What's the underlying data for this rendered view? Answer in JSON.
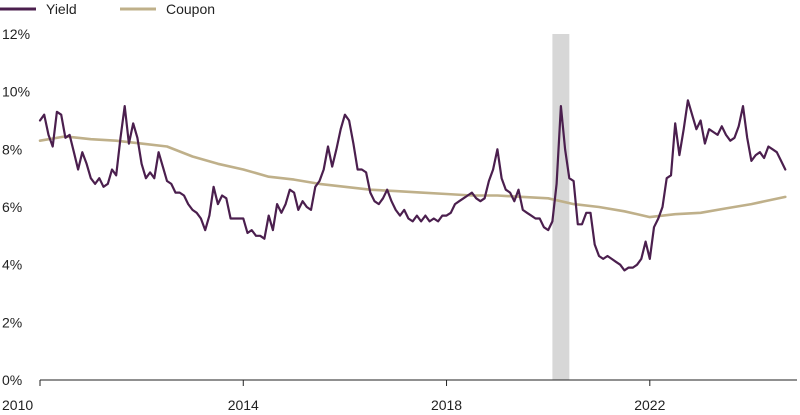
{
  "chart_data": {
    "type": "line",
    "title": "",
    "xlabel": "",
    "ylabel": "",
    "xlim": [
      "2010-01",
      "2024-09"
    ],
    "ylim": [
      0,
      12
    ],
    "x_ticks": [
      "2010",
      "2014",
      "2018",
      "2022"
    ],
    "y_ticks": [
      "0%",
      "2%",
      "4%",
      "6%",
      "8%",
      "10%",
      "12%"
    ],
    "grid": false,
    "legend": {
      "position": "top-left",
      "entries": [
        {
          "label": "Yield",
          "color": "#4b1f4e"
        },
        {
          "label": "Coupon",
          "color": "#bfb08a"
        }
      ]
    },
    "shaded_region": {
      "start": "2020-02",
      "end": "2020-06",
      "color": "#d7d7d7"
    },
    "series": [
      {
        "name": "Yield",
        "color": "#4b1f4e",
        "points": [
          [
            "2010-01",
            9.0
          ],
          [
            "2010-02",
            9.2
          ],
          [
            "2010-03",
            8.5
          ],
          [
            "2010-04",
            8.1
          ],
          [
            "2010-05",
            9.3
          ],
          [
            "2010-06",
            9.2
          ],
          [
            "2010-07",
            8.4
          ],
          [
            "2010-08",
            8.5
          ],
          [
            "2010-09",
            7.9
          ],
          [
            "2010-10",
            7.3
          ],
          [
            "2010-11",
            7.9
          ],
          [
            "2010-12",
            7.5
          ],
          [
            "2011-01",
            7.0
          ],
          [
            "2011-02",
            6.8
          ],
          [
            "2011-03",
            7.0
          ],
          [
            "2011-04",
            6.7
          ],
          [
            "2011-05",
            6.8
          ],
          [
            "2011-06",
            7.3
          ],
          [
            "2011-07",
            7.1
          ],
          [
            "2011-08",
            8.4
          ],
          [
            "2011-09",
            9.5
          ],
          [
            "2011-10",
            8.2
          ],
          [
            "2011-11",
            8.9
          ],
          [
            "2011-12",
            8.4
          ],
          [
            "2012-01",
            7.5
          ],
          [
            "2012-02",
            7.0
          ],
          [
            "2012-03",
            7.2
          ],
          [
            "2012-04",
            7.0
          ],
          [
            "2012-05",
            7.9
          ],
          [
            "2012-06",
            7.4
          ],
          [
            "2012-07",
            6.9
          ],
          [
            "2012-08",
            6.8
          ],
          [
            "2012-09",
            6.5
          ],
          [
            "2012-10",
            6.5
          ],
          [
            "2012-11",
            6.4
          ],
          [
            "2012-12",
            6.1
          ],
          [
            "2013-01",
            5.9
          ],
          [
            "2013-02",
            5.8
          ],
          [
            "2013-03",
            5.6
          ],
          [
            "2013-04",
            5.2
          ],
          [
            "2013-05",
            5.7
          ],
          [
            "2013-06",
            6.7
          ],
          [
            "2013-07",
            6.1
          ],
          [
            "2013-08",
            6.4
          ],
          [
            "2013-09",
            6.3
          ],
          [
            "2013-10",
            5.6
          ],
          [
            "2013-11",
            5.6
          ],
          [
            "2013-12",
            5.6
          ],
          [
            "2014-01",
            5.6
          ],
          [
            "2014-02",
            5.1
          ],
          [
            "2014-03",
            5.2
          ],
          [
            "2014-04",
            5.0
          ],
          [
            "2014-05",
            5.0
          ],
          [
            "2014-06",
            4.9
          ],
          [
            "2014-07",
            5.7
          ],
          [
            "2014-08",
            5.2
          ],
          [
            "2014-09",
            6.1
          ],
          [
            "2014-10",
            5.8
          ],
          [
            "2014-11",
            6.1
          ],
          [
            "2014-12",
            6.6
          ],
          [
            "2015-01",
            6.5
          ],
          [
            "2015-02",
            5.9
          ],
          [
            "2015-03",
            6.2
          ],
          [
            "2015-04",
            6.0
          ],
          [
            "2015-05",
            5.9
          ],
          [
            "2015-06",
            6.7
          ],
          [
            "2015-07",
            6.9
          ],
          [
            "2015-08",
            7.3
          ],
          [
            "2015-09",
            8.1
          ],
          [
            "2015-10",
            7.4
          ],
          [
            "2015-11",
            8.0
          ],
          [
            "2015-12",
            8.7
          ],
          [
            "2016-01",
            9.2
          ],
          [
            "2016-02",
            9.0
          ],
          [
            "2016-03",
            8.2
          ],
          [
            "2016-04",
            7.3
          ],
          [
            "2016-05",
            7.3
          ],
          [
            "2016-06",
            7.2
          ],
          [
            "2016-07",
            6.5
          ],
          [
            "2016-08",
            6.2
          ],
          [
            "2016-09",
            6.1
          ],
          [
            "2016-10",
            6.3
          ],
          [
            "2016-11",
            6.6
          ],
          [
            "2016-12",
            6.2
          ],
          [
            "2017-01",
            5.9
          ],
          [
            "2017-02",
            5.7
          ],
          [
            "2017-03",
            5.9
          ],
          [
            "2017-04",
            5.6
          ],
          [
            "2017-05",
            5.5
          ],
          [
            "2017-06",
            5.7
          ],
          [
            "2017-07",
            5.5
          ],
          [
            "2017-08",
            5.7
          ],
          [
            "2017-09",
            5.5
          ],
          [
            "2017-10",
            5.6
          ],
          [
            "2017-11",
            5.5
          ],
          [
            "2017-12",
            5.7
          ],
          [
            "2018-01",
            5.7
          ],
          [
            "2018-02",
            5.8
          ],
          [
            "2018-03",
            6.1
          ],
          [
            "2018-04",
            6.2
          ],
          [
            "2018-05",
            6.3
          ],
          [
            "2018-06",
            6.4
          ],
          [
            "2018-07",
            6.5
          ],
          [
            "2018-08",
            6.3
          ],
          [
            "2018-09",
            6.2
          ],
          [
            "2018-10",
            6.3
          ],
          [
            "2018-11",
            6.9
          ],
          [
            "2018-12",
            7.3
          ],
          [
            "2019-01",
            8.0
          ],
          [
            "2019-02",
            7.0
          ],
          [
            "2019-03",
            6.6
          ],
          [
            "2019-04",
            6.5
          ],
          [
            "2019-05",
            6.2
          ],
          [
            "2019-06",
            6.6
          ],
          [
            "2019-07",
            5.9
          ],
          [
            "2019-08",
            5.8
          ],
          [
            "2019-09",
            5.7
          ],
          [
            "2019-10",
            5.6
          ],
          [
            "2019-11",
            5.6
          ],
          [
            "2019-12",
            5.3
          ],
          [
            "2020-01",
            5.2
          ],
          [
            "2020-02",
            5.5
          ],
          [
            "2020-03",
            6.8
          ],
          [
            "2020-04",
            9.5
          ],
          [
            "2020-05",
            8.0
          ],
          [
            "2020-06",
            7.0
          ],
          [
            "2020-07",
            6.9
          ],
          [
            "2020-08",
            5.4
          ],
          [
            "2020-09",
            5.4
          ],
          [
            "2020-10",
            5.8
          ],
          [
            "2020-11",
            5.8
          ],
          [
            "2020-12",
            4.7
          ],
          [
            "2021-01",
            4.3
          ],
          [
            "2021-02",
            4.2
          ],
          [
            "2021-03",
            4.3
          ],
          [
            "2021-04",
            4.2
          ],
          [
            "2021-05",
            4.1
          ],
          [
            "2021-06",
            4.0
          ],
          [
            "2021-07",
            3.8
          ],
          [
            "2021-08",
            3.9
          ],
          [
            "2021-09",
            3.9
          ],
          [
            "2021-10",
            4.0
          ],
          [
            "2021-11",
            4.2
          ],
          [
            "2021-12",
            4.8
          ],
          [
            "2022-01",
            4.2
          ],
          [
            "2022-02",
            5.3
          ],
          [
            "2022-03",
            5.6
          ],
          [
            "2022-04",
            6.0
          ],
          [
            "2022-05",
            7.0
          ],
          [
            "2022-06",
            7.1
          ],
          [
            "2022-07",
            8.9
          ],
          [
            "2022-08",
            7.8
          ],
          [
            "2022-09",
            8.7
          ],
          [
            "2022-10",
            9.7
          ],
          [
            "2022-11",
            9.2
          ],
          [
            "2022-12",
            8.7
          ],
          [
            "2023-01",
            9.0
          ],
          [
            "2023-02",
            8.2
          ],
          [
            "2023-03",
            8.7
          ],
          [
            "2023-04",
            8.6
          ],
          [
            "2023-05",
            8.5
          ],
          [
            "2023-06",
            8.8
          ],
          [
            "2023-07",
            8.5
          ],
          [
            "2023-08",
            8.3
          ],
          [
            "2023-09",
            8.4
          ],
          [
            "2023-10",
            8.8
          ],
          [
            "2023-11",
            9.5
          ],
          [
            "2023-12",
            8.4
          ],
          [
            "2024-01",
            7.6
          ],
          [
            "2024-02",
            7.8
          ],
          [
            "2024-03",
            7.9
          ],
          [
            "2024-04",
            7.7
          ],
          [
            "2024-05",
            8.1
          ],
          [
            "2024-06",
            8.0
          ],
          [
            "2024-07",
            7.9
          ],
          [
            "2024-08",
            7.6
          ],
          [
            "2024-09",
            7.3
          ]
        ]
      },
      {
        "name": "Coupon",
        "color": "#bfb08a",
        "points": [
          [
            "2010-01",
            8.3
          ],
          [
            "2010-07",
            8.45
          ],
          [
            "2011-01",
            8.35
          ],
          [
            "2011-07",
            8.3
          ],
          [
            "2012-01",
            8.2
          ],
          [
            "2012-07",
            8.1
          ],
          [
            "2013-01",
            7.75
          ],
          [
            "2013-07",
            7.5
          ],
          [
            "2014-01",
            7.3
          ],
          [
            "2014-07",
            7.05
          ],
          [
            "2015-01",
            6.95
          ],
          [
            "2015-07",
            6.8
          ],
          [
            "2016-01",
            6.7
          ],
          [
            "2016-07",
            6.6
          ],
          [
            "2017-01",
            6.55
          ],
          [
            "2017-07",
            6.5
          ],
          [
            "2018-01",
            6.45
          ],
          [
            "2018-07",
            6.4
          ],
          [
            "2019-01",
            6.4
          ],
          [
            "2019-07",
            6.35
          ],
          [
            "2020-01",
            6.3
          ],
          [
            "2020-07",
            6.1
          ],
          [
            "2021-01",
            6.0
          ],
          [
            "2021-07",
            5.85
          ],
          [
            "2022-01",
            5.65
          ],
          [
            "2022-07",
            5.75
          ],
          [
            "2023-01",
            5.8
          ],
          [
            "2023-07",
            5.95
          ],
          [
            "2024-01",
            6.1
          ],
          [
            "2024-09",
            6.35
          ]
        ]
      }
    ]
  }
}
